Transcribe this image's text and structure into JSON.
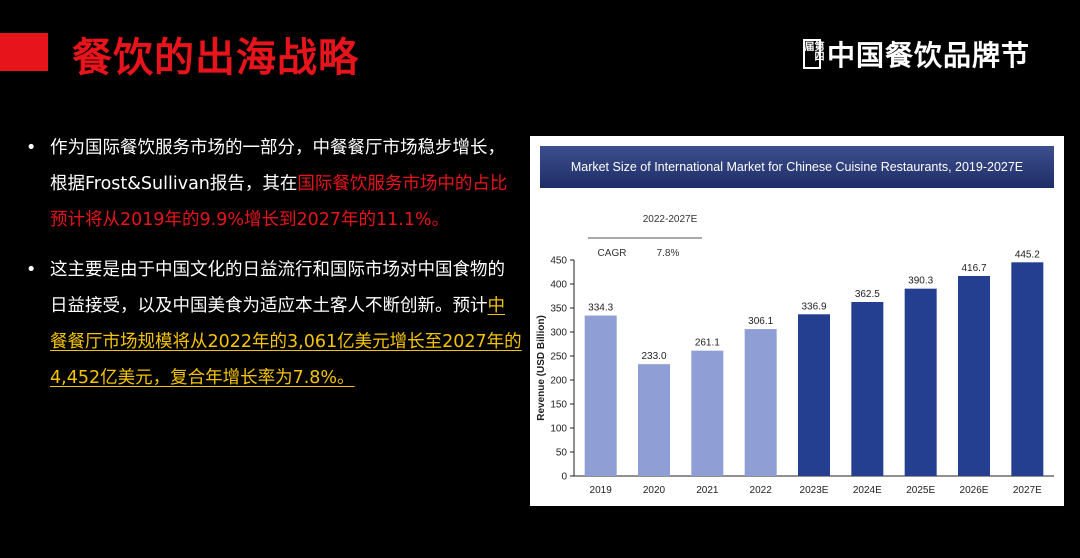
{
  "slide": {
    "title": "餐饮的出海战略",
    "brand_seal": "第四届",
    "brand": "中国餐饮品牌节"
  },
  "bullets": [
    {
      "parts": [
        {
          "text": "作为国际餐饮服务市场的一部分，中餐餐厅市场稳步增长，根据Frost&Sullivan报告，其在",
          "style": "normal"
        },
        {
          "text": "国际餐饮服务市场中的占比预计将从2019年的9.9%增长到2027年的11.1%。",
          "style": "red"
        }
      ]
    },
    {
      "parts": [
        {
          "text": "这主要是由于中国文化的日益流行和国际市场对中国食物的日益接受，以及中国美食为适应本土客人不断创新。预计",
          "style": "normal"
        },
        {
          "text": "中餐餐厅市场规模将从2022年的3,061亿美元增长至2027年的4,452亿美元，复合年增长率为7.8%。",
          "style": "yellow"
        }
      ]
    }
  ],
  "colors": {
    "accent_red": "#e8141b",
    "highlight_yellow": "#f5c400",
    "bar_light": "#8f9fd6",
    "bar_dark": "#243f8f"
  },
  "chart_data": {
    "type": "bar",
    "title": "Market Size of International Market for Chinese Cuisine Restaurants, 2019-2027E",
    "ylabel": "Revenue (USD Billion)",
    "xlabel": "",
    "ylim": [
      0,
      450
    ],
    "yticks": [
      "0",
      "50",
      "100",
      "150",
      "200",
      "250",
      "300",
      "350",
      "400",
      "450"
    ],
    "categories": [
      "2019",
      "2020",
      "2021",
      "2022",
      "2023E",
      "2024E",
      "2025E",
      "2026E",
      "2027E"
    ],
    "values": [
      334.3,
      233.0,
      261.1,
      306.1,
      336.9,
      362.5,
      390.3,
      416.7,
      445.2
    ],
    "value_labels": [
      "334.3",
      "233.0",
      "261.1",
      "306.1",
      "336.9",
      "362.5",
      "390.3",
      "416.7",
      "445.2"
    ],
    "bar_styles": [
      "light",
      "light",
      "light",
      "light",
      "dark",
      "dark",
      "dark",
      "dark",
      "dark"
    ],
    "cagr_table": {
      "period": "2022-2027E",
      "label": "CAGR",
      "value": "7.8%"
    },
    "grid": false
  }
}
